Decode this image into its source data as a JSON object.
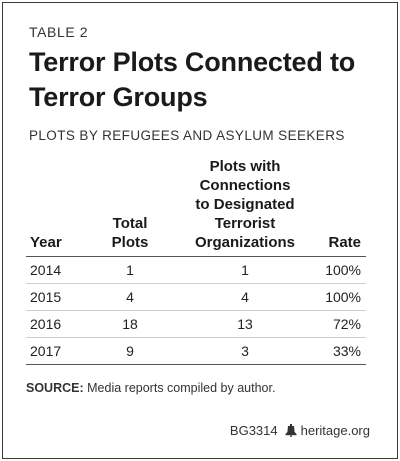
{
  "table_label": "TABLE 2",
  "title": "Terror Plots Connected to Terror Groups",
  "subtitle": "PLOTS BY REFUGEES AND ASYLUM SEEKERS",
  "columns": {
    "year": "Year",
    "total_line1": "Total",
    "total_line2": "Plots",
    "plots_line1": "Plots with",
    "plots_line2": "Connections",
    "plots_line3": "to Designated",
    "plots_line4": "Terrorist",
    "plots_line5": "Organizations",
    "rate": "Rate"
  },
  "rows": [
    {
      "year": "2014",
      "total": "1",
      "connected": "1",
      "rate": "100%"
    },
    {
      "year": "2015",
      "total": "4",
      "connected": "4",
      "rate": "100%"
    },
    {
      "year": "2016",
      "total": "18",
      "connected": "13",
      "rate": "72%"
    },
    {
      "year": "2017",
      "total": "9",
      "connected": "3",
      "rate": "33%"
    }
  ],
  "source": {
    "label": "SOURCE:",
    "text": "Media reports compiled by author."
  },
  "footer": {
    "code": "BG3314",
    "site": "heritage.org",
    "icon": "liberty-bell-icon"
  }
}
